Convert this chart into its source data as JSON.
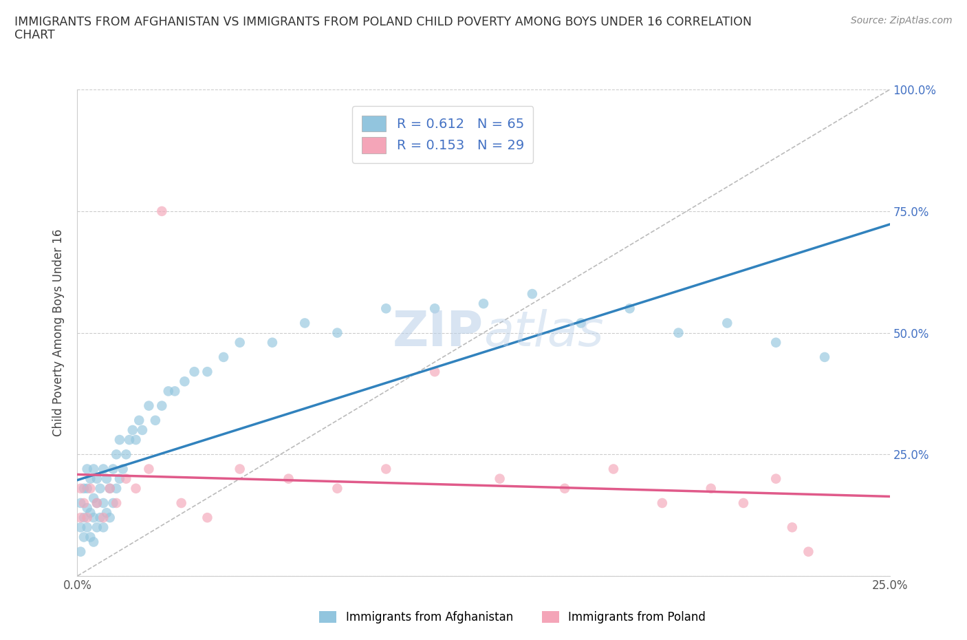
{
  "title_line1": "IMMIGRANTS FROM AFGHANISTAN VS IMMIGRANTS FROM POLAND CHILD POVERTY AMONG BOYS UNDER 16 CORRELATION",
  "title_line2": "CHART",
  "source_text": "Source: ZipAtlas.com",
  "ylabel": "Child Poverty Among Boys Under 16",
  "afghanistan_R": 0.612,
  "afghanistan_N": 65,
  "poland_R": 0.153,
  "poland_N": 29,
  "afghanistan_color": "#92c5de",
  "poland_color": "#f4a5b8",
  "afghanistan_line_color": "#3182bd",
  "poland_line_color": "#e05a8a",
  "diag_line_color": "#bbbbbb",
  "watermark_color_hex": "#c8ddf0",
  "xlim_min": 0.0,
  "xlim_max": 0.25,
  "ylim_min": 0.0,
  "ylim_max": 1.0,
  "x_ticks": [
    0.0,
    0.05,
    0.1,
    0.15,
    0.2,
    0.25
  ],
  "x_tick_labels": [
    "0.0%",
    "",
    "",
    "",
    "",
    "25.0%"
  ],
  "y_ticks": [
    0.0,
    0.25,
    0.5,
    0.75,
    1.0
  ],
  "y_tick_labels_right": [
    "",
    "25.0%",
    "50.0%",
    "75.0%",
    "100.0%"
  ],
  "scatter_size": 110,
  "scatter_alpha": 0.65,
  "afghanistan_x": [
    0.001,
    0.001,
    0.001,
    0.002,
    0.002,
    0.002,
    0.003,
    0.003,
    0.003,
    0.003,
    0.004,
    0.004,
    0.004,
    0.005,
    0.005,
    0.005,
    0.005,
    0.006,
    0.006,
    0.006,
    0.007,
    0.007,
    0.008,
    0.008,
    0.008,
    0.009,
    0.009,
    0.01,
    0.01,
    0.011,
    0.011,
    0.012,
    0.012,
    0.013,
    0.013,
    0.014,
    0.015,
    0.016,
    0.017,
    0.018,
    0.019,
    0.02,
    0.022,
    0.024,
    0.026,
    0.028,
    0.03,
    0.033,
    0.036,
    0.04,
    0.045,
    0.05,
    0.06,
    0.07,
    0.08,
    0.095,
    0.11,
    0.125,
    0.14,
    0.155,
    0.17,
    0.185,
    0.2,
    0.215,
    0.23
  ],
  "afghanistan_y": [
    0.05,
    0.1,
    0.15,
    0.08,
    0.12,
    0.18,
    0.1,
    0.14,
    0.18,
    0.22,
    0.08,
    0.13,
    0.2,
    0.07,
    0.12,
    0.16,
    0.22,
    0.1,
    0.15,
    0.2,
    0.12,
    0.18,
    0.1,
    0.15,
    0.22,
    0.13,
    0.2,
    0.12,
    0.18,
    0.15,
    0.22,
    0.18,
    0.25,
    0.2,
    0.28,
    0.22,
    0.25,
    0.28,
    0.3,
    0.28,
    0.32,
    0.3,
    0.35,
    0.32,
    0.35,
    0.38,
    0.38,
    0.4,
    0.42,
    0.42,
    0.45,
    0.48,
    0.48,
    0.52,
    0.5,
    0.55,
    0.55,
    0.56,
    0.58,
    0.52,
    0.55,
    0.5,
    0.52,
    0.48,
    0.45
  ],
  "poland_x": [
    0.001,
    0.001,
    0.002,
    0.003,
    0.004,
    0.006,
    0.008,
    0.01,
    0.012,
    0.015,
    0.018,
    0.022,
    0.026,
    0.032,
    0.04,
    0.05,
    0.065,
    0.08,
    0.095,
    0.11,
    0.13,
    0.15,
    0.165,
    0.18,
    0.195,
    0.205,
    0.215,
    0.22,
    0.225
  ],
  "poland_y": [
    0.12,
    0.18,
    0.15,
    0.12,
    0.18,
    0.15,
    0.12,
    0.18,
    0.15,
    0.2,
    0.18,
    0.22,
    0.75,
    0.15,
    0.12,
    0.22,
    0.2,
    0.18,
    0.22,
    0.42,
    0.2,
    0.18,
    0.22,
    0.15,
    0.18,
    0.15,
    0.2,
    0.1,
    0.05
  ]
}
